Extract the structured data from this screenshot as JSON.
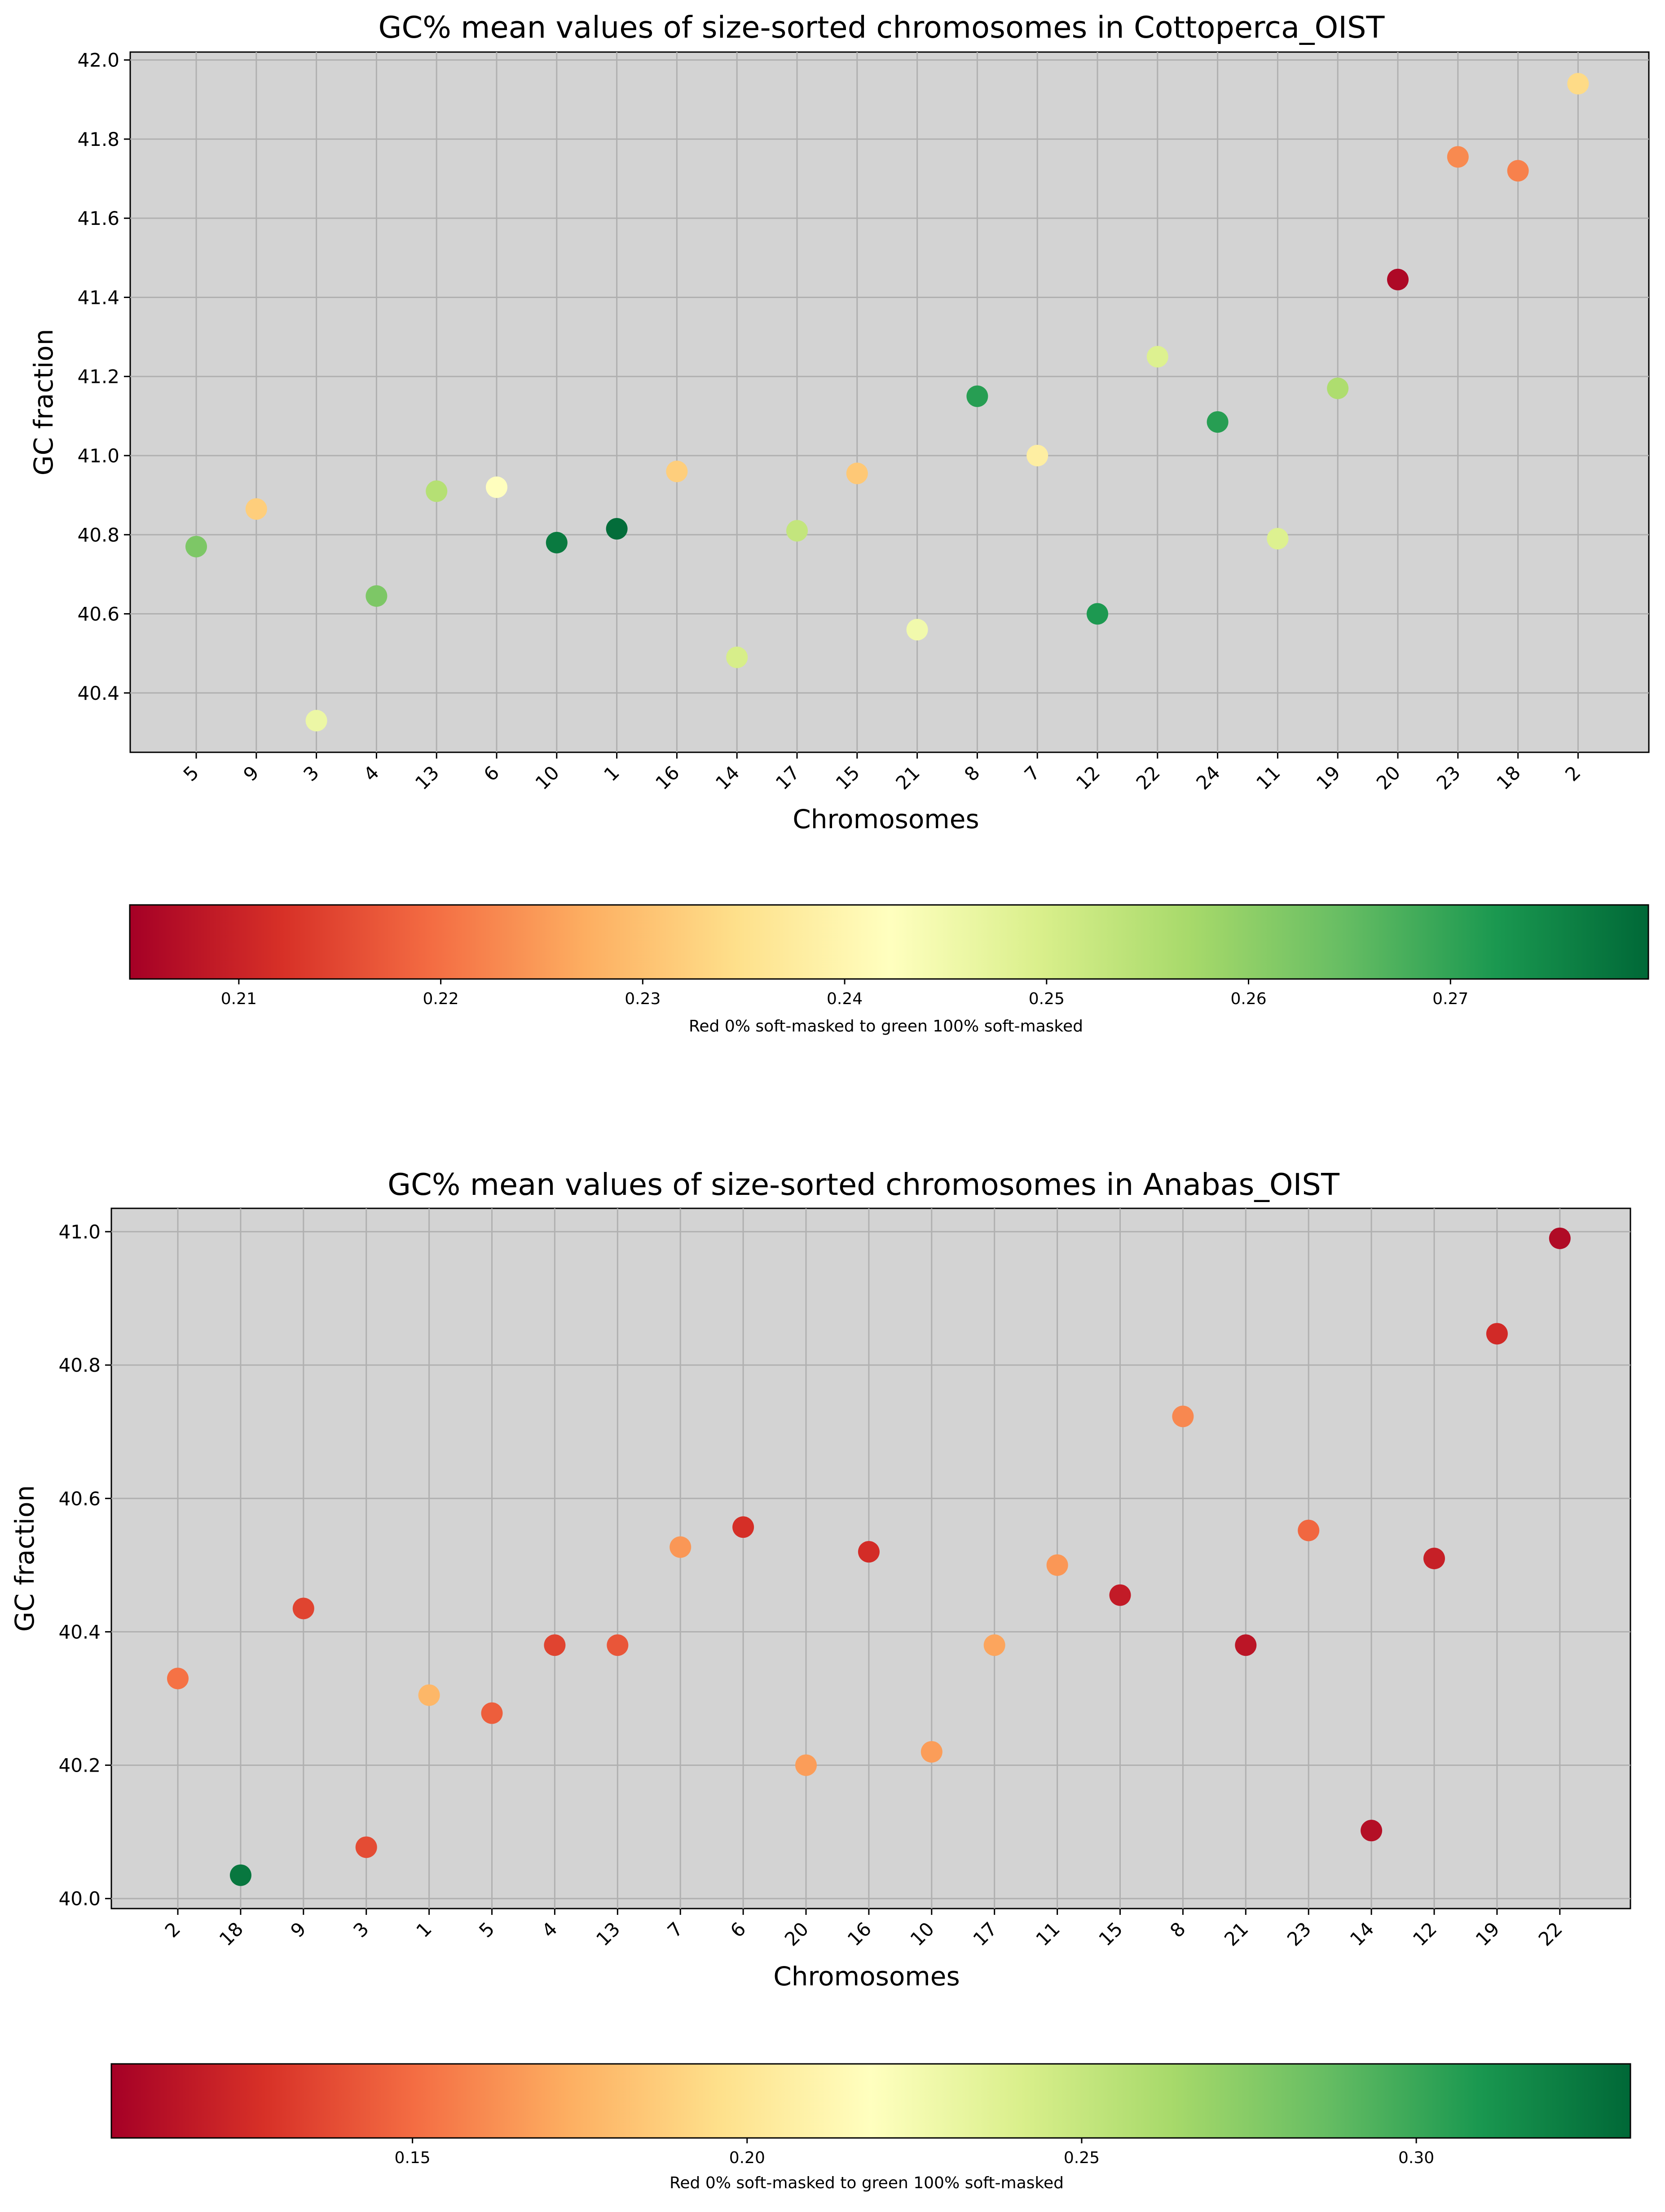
{
  "chart_data": [
    {
      "type": "scatter",
      "title": "GC% mean values of size-sorted chromosomes in Cottoperca_OIST",
      "xlabel": "Chromosomes",
      "ylabel": "GC fraction",
      "grid": true,
      "ylim": [
        40.25,
        42.02
      ],
      "yticks": [
        "40.4",
        "40.6",
        "40.8",
        "41.0",
        "41.2",
        "41.4",
        "41.6",
        "41.8",
        "42.0"
      ],
      "categories": [
        "5",
        "9",
        "3",
        "4",
        "13",
        "6",
        "10",
        "1",
        "16",
        "14",
        "17",
        "15",
        "21",
        "8",
        "7",
        "12",
        "22",
        "24",
        "11",
        "19",
        "20",
        "23",
        "18",
        "2"
      ],
      "values": [
        40.77,
        40.865,
        40.33,
        40.645,
        40.91,
        40.92,
        40.78,
        40.815,
        40.96,
        40.49,
        40.81,
        40.955,
        40.56,
        41.15,
        41.0,
        40.6,
        41.25,
        41.085,
        40.79,
        41.17,
        41.445,
        41.755,
        41.72,
        41.94
      ],
      "color_values": [
        0.262,
        0.232,
        0.246,
        0.262,
        0.255,
        0.242,
        0.277,
        0.279,
        0.232,
        0.25,
        0.253,
        0.231,
        0.245,
        0.271,
        0.238,
        0.272,
        0.249,
        0.271,
        0.249,
        0.256,
        0.206,
        0.223,
        0.222,
        0.234
      ],
      "colorbar": {
        "label": "Red 0% soft-masked to green 100% soft-masked",
        "range": [
          0.2046,
          0.2798
        ],
        "ticks": [
          "0.21",
          "0.22",
          "0.23",
          "0.24",
          "0.25",
          "0.26",
          "0.27"
        ]
      }
    },
    {
      "type": "scatter",
      "title": "GC% mean values of size-sorted chromosomes in Anabas_OIST",
      "xlabel": "Chromosomes",
      "ylabel": "GC fraction",
      "grid": true,
      "ylim": [
        39.985,
        41.035
      ],
      "yticks": [
        "40.0",
        "40.2",
        "40.4",
        "40.6",
        "40.8",
        "41.0"
      ],
      "categories": [
        "2",
        "18",
        "9",
        "3",
        "1",
        "5",
        "4",
        "13",
        "7",
        "6",
        "20",
        "16",
        "10",
        "17",
        "11",
        "15",
        "8",
        "21",
        "23",
        "14",
        "12",
        "19",
        "22"
      ],
      "values": [
        40.33,
        40.035,
        40.435,
        40.077,
        40.305,
        40.278,
        40.38,
        40.38,
        40.527,
        40.557,
        40.2,
        40.52,
        40.22,
        40.38,
        40.5,
        40.455,
        40.723,
        40.38,
        40.552,
        40.102,
        40.51,
        40.847,
        40.99
      ],
      "color_values": [
        0.152,
        0.325,
        0.135,
        0.138,
        0.177,
        0.145,
        0.135,
        0.142,
        0.165,
        0.127,
        0.167,
        0.126,
        0.167,
        0.17,
        0.165,
        0.118,
        0.16,
        0.115,
        0.148,
        0.112,
        0.12,
        0.125,
        0.11
      ],
      "colorbar": {
        "label": "Red 0% soft-masked to green 100% soft-masked",
        "range": [
          0.105,
          0.332
        ],
        "ticks": [
          "0.15",
          "0.20",
          "0.25",
          "0.30"
        ]
      }
    }
  ]
}
